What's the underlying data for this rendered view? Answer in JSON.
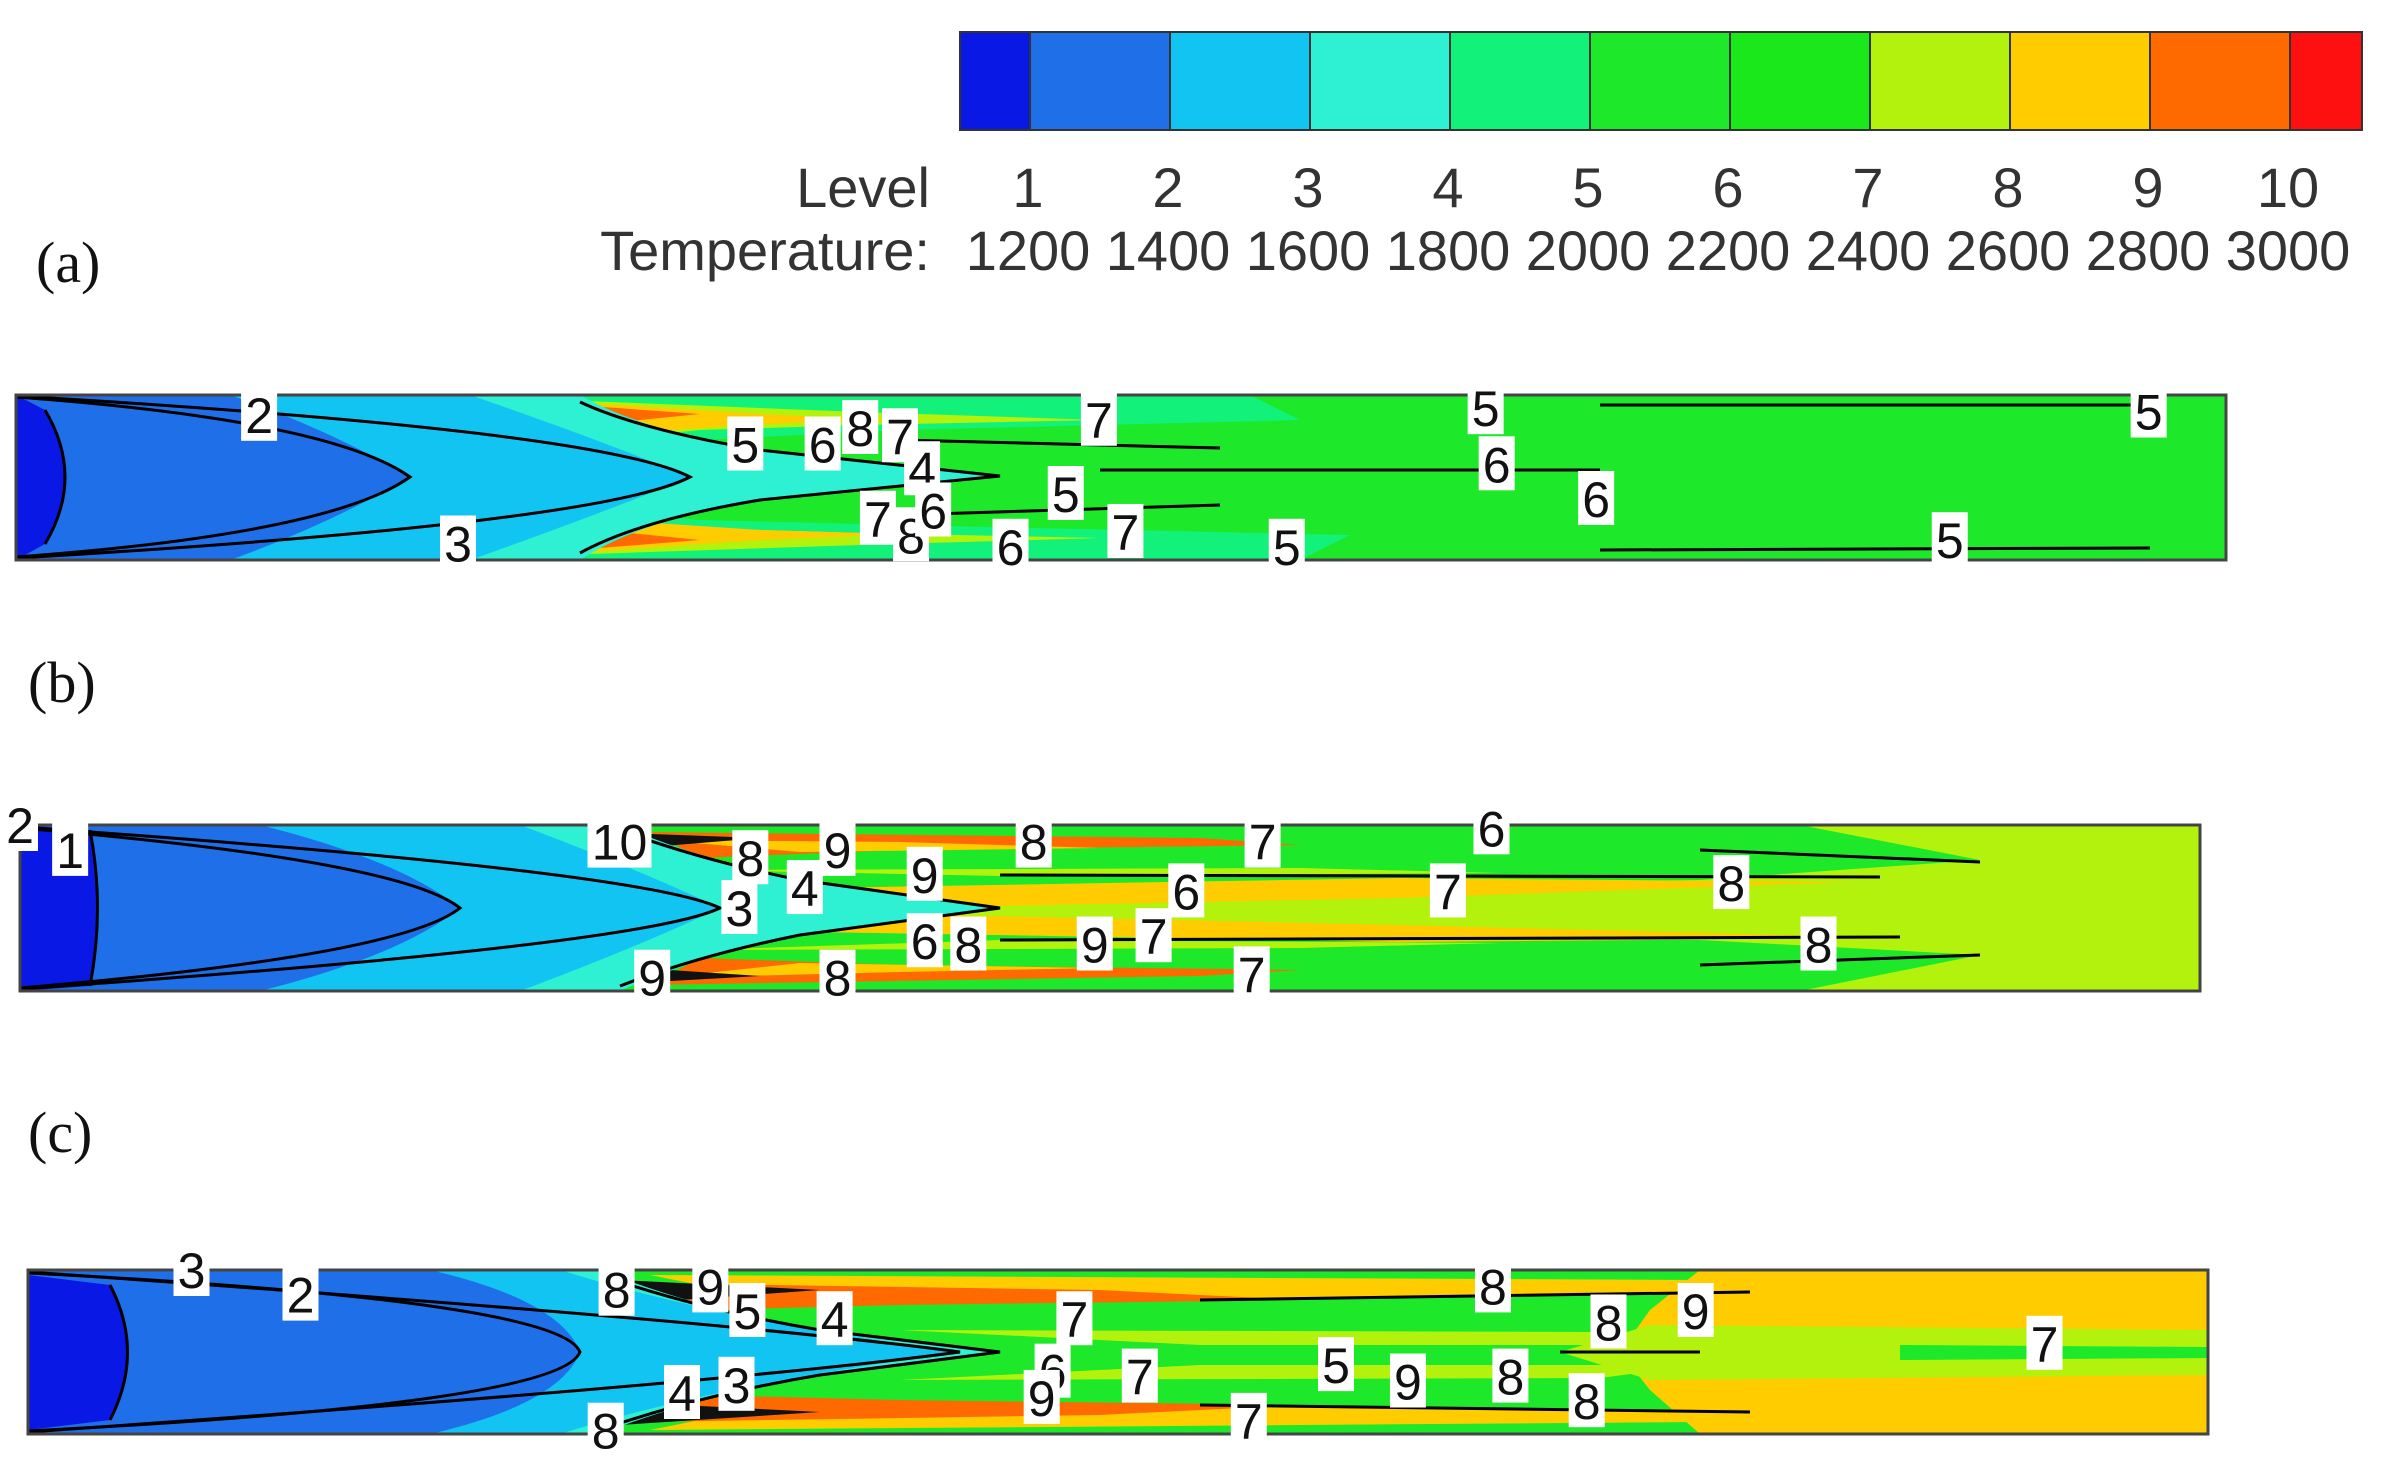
{
  "legend": {
    "row_labels": [
      "Level",
      "Temperature:"
    ],
    "levels": [
      {
        "level": "1",
        "temperature": "1200",
        "color": "#0a18e6"
      },
      {
        "level": "2",
        "temperature": "1400",
        "color": "#1f6fe8"
      },
      {
        "level": "3",
        "temperature": "1600",
        "color": "#12c4f2"
      },
      {
        "level": "4",
        "temperature": "1800",
        "color": "#2ef0d2"
      },
      {
        "level": "5",
        "temperature": "2000",
        "color": "#12f27a"
      },
      {
        "level": "6",
        "temperature": "2200",
        "color": "#1ee82a"
      },
      {
        "level": "7",
        "temperature": "2400",
        "color": "#1ae81a"
      },
      {
        "level": "8",
        "temperature": "2600",
        "color": "#b3f20c"
      },
      {
        "level": "9",
        "temperature": "2800",
        "color": "#ffcc00"
      },
      {
        "level": "10",
        "temperature": "3000",
        "color": "#ff6a00"
      }
    ],
    "end_color": "#ff1010"
  },
  "chart_data": [
    {
      "type": "heatmap",
      "panel": "(a)",
      "labels": [
        {
          "text": "2",
          "x": 0.11,
          "y": 0.12
        },
        {
          "text": "3",
          "x": 0.2,
          "y": 0.9
        },
        {
          "text": "5",
          "x": 0.33,
          "y": 0.3
        },
        {
          "text": "6",
          "x": 0.365,
          "y": 0.3
        },
        {
          "text": "8",
          "x": 0.382,
          "y": 0.2
        },
        {
          "text": "7",
          "x": 0.4,
          "y": 0.25
        },
        {
          "text": "4",
          "x": 0.41,
          "y": 0.45
        },
        {
          "text": "7",
          "x": 0.39,
          "y": 0.75
        },
        {
          "text": "8",
          "x": 0.405,
          "y": 0.85
        },
        {
          "text": "6",
          "x": 0.415,
          "y": 0.7
        },
        {
          "text": "6",
          "x": 0.45,
          "y": 0.92
        },
        {
          "text": "7",
          "x": 0.49,
          "y": 0.15
        },
        {
          "text": "5",
          "x": 0.475,
          "y": 0.6
        },
        {
          "text": "7",
          "x": 0.502,
          "y": 0.83
        },
        {
          "text": "5",
          "x": 0.575,
          "y": 0.92
        },
        {
          "text": "5",
          "x": 0.665,
          "y": 0.08
        },
        {
          "text": "6",
          "x": 0.67,
          "y": 0.42
        },
        {
          "text": "6",
          "x": 0.715,
          "y": 0.63
        },
        {
          "text": "5",
          "x": 0.875,
          "y": 0.88
        },
        {
          "text": "5",
          "x": 0.965,
          "y": 0.1
        }
      ]
    },
    {
      "type": "heatmap",
      "panel": "(b)",
      "labels": [
        {
          "text": "2",
          "x": 0.0,
          "y": 0.0
        },
        {
          "text": "1",
          "x": 0.023,
          "y": 0.15
        },
        {
          "text": "10",
          "x": 0.275,
          "y": 0.1
        },
        {
          "text": "8",
          "x": 0.335,
          "y": 0.2
        },
        {
          "text": "9",
          "x": 0.375,
          "y": 0.15
        },
        {
          "text": "4",
          "x": 0.36,
          "y": 0.38
        },
        {
          "text": "3",
          "x": 0.33,
          "y": 0.5
        },
        {
          "text": "9",
          "x": 0.415,
          "y": 0.3
        },
        {
          "text": "8",
          "x": 0.465,
          "y": 0.1
        },
        {
          "text": "6",
          "x": 0.535,
          "y": 0.4
        },
        {
          "text": "6",
          "x": 0.415,
          "y": 0.7
        },
        {
          "text": "8",
          "x": 0.435,
          "y": 0.72
        },
        {
          "text": "9",
          "x": 0.493,
          "y": 0.72
        },
        {
          "text": "7",
          "x": 0.52,
          "y": 0.67
        },
        {
          "text": "7",
          "x": 0.57,
          "y": 0.1
        },
        {
          "text": "9",
          "x": 0.29,
          "y": 0.92
        },
        {
          "text": "8",
          "x": 0.375,
          "y": 0.92
        },
        {
          "text": "7",
          "x": 0.565,
          "y": 0.9
        },
        {
          "text": "6",
          "x": 0.675,
          "y": 0.02
        },
        {
          "text": "7",
          "x": 0.655,
          "y": 0.4
        },
        {
          "text": "8",
          "x": 0.785,
          "y": 0.35
        },
        {
          "text": "8",
          "x": 0.825,
          "y": 0.72
        }
      ]
    },
    {
      "type": "heatmap",
      "panel": "(c)",
      "labels": [
        {
          "text": "3",
          "x": 0.075,
          "y": 0.0
        },
        {
          "text": "2",
          "x": 0.125,
          "y": 0.15
        },
        {
          "text": "8",
          "x": 0.27,
          "y": 0.12
        },
        {
          "text": "9",
          "x": 0.313,
          "y": 0.1
        },
        {
          "text": "5",
          "x": 0.33,
          "y": 0.25
        },
        {
          "text": "4",
          "x": 0.37,
          "y": 0.3
        },
        {
          "text": "4",
          "x": 0.3,
          "y": 0.75
        },
        {
          "text": "3",
          "x": 0.325,
          "y": 0.7
        },
        {
          "text": "8",
          "x": 0.265,
          "y": 0.98
        },
        {
          "text": "7",
          "x": 0.48,
          "y": 0.3
        },
        {
          "text": "6",
          "x": 0.47,
          "y": 0.62
        },
        {
          "text": "9",
          "x": 0.465,
          "y": 0.78
        },
        {
          "text": "7",
          "x": 0.51,
          "y": 0.65
        },
        {
          "text": "7",
          "x": 0.56,
          "y": 0.92
        },
        {
          "text": "5",
          "x": 0.6,
          "y": 0.58
        },
        {
          "text": "9",
          "x": 0.633,
          "y": 0.68
        },
        {
          "text": "8",
          "x": 0.672,
          "y": 0.1
        },
        {
          "text": "8",
          "x": 0.68,
          "y": 0.65
        },
        {
          "text": "8",
          "x": 0.725,
          "y": 0.32
        },
        {
          "text": "8",
          "x": 0.715,
          "y": 0.8
        },
        {
          "text": "9",
          "x": 0.765,
          "y": 0.25
        },
        {
          "text": "7",
          "x": 0.925,
          "y": 0.45
        }
      ]
    }
  ]
}
